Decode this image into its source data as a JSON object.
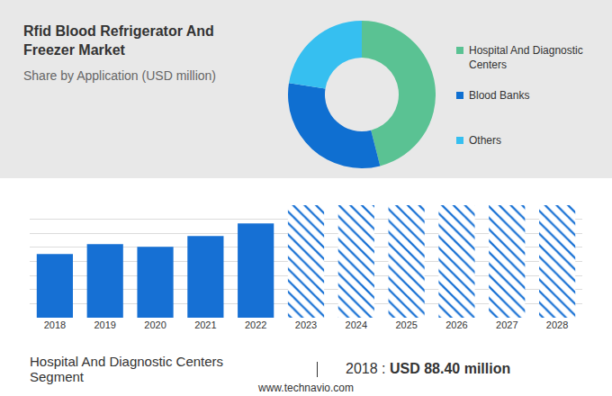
{
  "chart_data": [
    {
      "type": "pie",
      "title": "Rfid Blood Refrigerator And Freezer Market",
      "subtitle": "Share by Application (USD million)",
      "categories": [
        "Hospital And Diagnostic Centers",
        "Blood Banks",
        "Others"
      ],
      "values": [
        46,
        31.5,
        22.5
      ],
      "colors": [
        "#5ac293",
        "#0f6fd1",
        "#36bff0"
      ],
      "legend": "right"
    },
    {
      "type": "bar",
      "categories": [
        "2018",
        "2019",
        "2020",
        "2021",
        "2022",
        "2023",
        "2024",
        "2025",
        "2026",
        "2027",
        "2028"
      ],
      "series": [
        {
          "color": "#1670d4",
          "values": [
            88.4,
            102.1,
            98.4,
            113.3,
            130.7,
            null,
            null,
            null,
            null,
            null,
            null
          ]
        },
        {
          "color": "#1670d4",
          "marker": "hatched",
          "values": [
            null,
            null,
            null,
            null,
            null,
            156,
            156,
            156,
            156,
            156,
            156
          ]
        }
      ],
      "ylim": [
        0,
        156
      ],
      "yticks": [
        0,
        19.5,
        39,
        58.5,
        78,
        97.5,
        117,
        136.5,
        156
      ],
      "grid": true,
      "tick_labels": "x",
      "annotations": [
        "Hospital And Diagnostic Centers Segment",
        "2018 : USD 88.40 million"
      ]
    }
  ],
  "source": "www.technavio.com"
}
